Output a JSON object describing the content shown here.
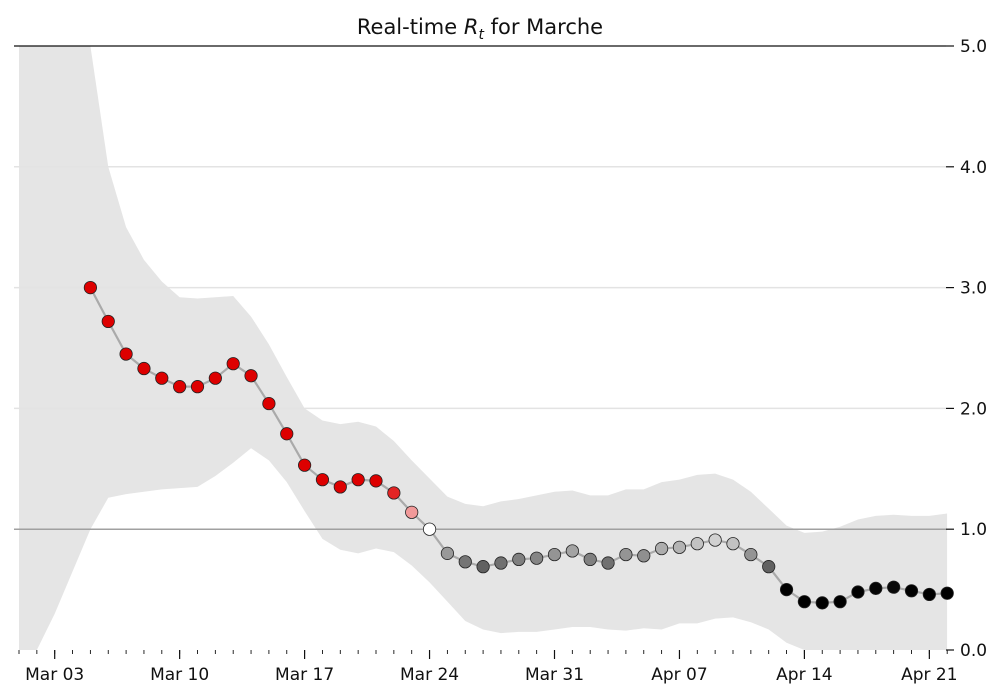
{
  "chart_data": {
    "type": "scatter",
    "title_prefix": "Real-time ",
    "title_symbol": "R",
    "title_subscript": "t",
    "title_suffix": " for Marche",
    "xlabel": "",
    "ylabel": "",
    "ylim": [
      0,
      5
    ],
    "xlim": [
      "2020-03-01",
      "2020-04-22"
    ],
    "grid": "horizontal",
    "reference_line": 1.0,
    "y_ticks": [
      "0.0",
      "1.0",
      "2.0",
      "3.0",
      "4.0",
      "5.0"
    ],
    "x_ticks": [
      {
        "date": "2020-03-03",
        "label": "Mar 03"
      },
      {
        "date": "2020-03-10",
        "label": "Mar 10"
      },
      {
        "date": "2020-03-17",
        "label": "Mar 17"
      },
      {
        "date": "2020-03-24",
        "label": "Mar 24"
      },
      {
        "date": "2020-03-31",
        "label": "Mar 31"
      },
      {
        "date": "2020-04-07",
        "label": "Apr 07"
      },
      {
        "date": "2020-04-14",
        "label": "Apr 14"
      },
      {
        "date": "2020-04-21",
        "label": "Apr 21"
      }
    ],
    "colors": {
      "band": "#e5e5e5",
      "line": "#aaaaaa",
      "above_one": "#dd0000",
      "at_one": "#ffffff",
      "below_one": "#000000"
    },
    "series": [
      {
        "x": [
          "2020-03-05",
          "2020-03-06",
          "2020-03-07",
          "2020-03-08",
          "2020-03-09",
          "2020-03-10",
          "2020-03-11",
          "2020-03-12",
          "2020-03-13",
          "2020-03-14",
          "2020-03-15",
          "2020-03-16",
          "2020-03-17",
          "2020-03-18",
          "2020-03-19",
          "2020-03-20",
          "2020-03-21",
          "2020-03-22",
          "2020-03-23",
          "2020-03-24",
          "2020-03-25",
          "2020-03-26",
          "2020-03-27",
          "2020-03-28",
          "2020-03-29",
          "2020-03-30",
          "2020-03-31",
          "2020-04-01",
          "2020-04-02",
          "2020-04-03",
          "2020-04-04",
          "2020-04-05",
          "2020-04-06",
          "2020-04-07",
          "2020-04-08",
          "2020-04-09",
          "2020-04-10",
          "2020-04-11",
          "2020-04-12",
          "2020-04-13",
          "2020-04-14",
          "2020-04-15",
          "2020-04-16",
          "2020-04-17",
          "2020-04-18",
          "2020-04-19",
          "2020-04-20",
          "2020-04-21",
          "2020-04-22"
        ],
        "y": [
          3.0,
          2.72,
          2.45,
          2.33,
          2.25,
          2.18,
          2.18,
          2.25,
          2.37,
          2.27,
          2.04,
          1.79,
          1.53,
          1.41,
          1.35,
          1.41,
          1.4,
          1.3,
          1.14,
          1.0,
          0.8,
          0.73,
          0.69,
          0.72,
          0.75,
          0.76,
          0.79,
          0.82,
          0.75,
          0.72,
          0.79,
          0.78,
          0.84,
          0.85,
          0.88,
          0.91,
          0.88,
          0.79,
          0.69,
          0.5,
          0.4,
          0.39,
          0.4,
          0.48,
          0.51,
          0.52,
          0.49,
          0.46,
          0.47
        ]
      }
    ],
    "band": {
      "x": [
        "2020-03-01",
        "2020-03-02",
        "2020-03-03",
        "2020-03-04",
        "2020-03-05",
        "2020-03-06",
        "2020-03-07",
        "2020-03-08",
        "2020-03-09",
        "2020-03-10",
        "2020-03-11",
        "2020-03-12",
        "2020-03-13",
        "2020-03-14",
        "2020-03-15",
        "2020-03-16",
        "2020-03-17",
        "2020-03-18",
        "2020-03-19",
        "2020-03-20",
        "2020-03-21",
        "2020-03-22",
        "2020-03-23",
        "2020-03-24",
        "2020-03-25",
        "2020-03-26",
        "2020-03-27",
        "2020-03-28",
        "2020-03-29",
        "2020-03-30",
        "2020-03-31",
        "2020-04-01",
        "2020-04-02",
        "2020-04-03",
        "2020-04-04",
        "2020-04-05",
        "2020-04-06",
        "2020-04-07",
        "2020-04-08",
        "2020-04-09",
        "2020-04-10",
        "2020-04-11",
        "2020-04-12",
        "2020-04-13",
        "2020-04-14",
        "2020-04-15",
        "2020-04-16",
        "2020-04-17",
        "2020-04-18",
        "2020-04-19",
        "2020-04-20",
        "2020-04-21",
        "2020-04-22"
      ],
      "upper": [
        5.0,
        5.0,
        5.0,
        5.0,
        5.0,
        4.0,
        3.5,
        3.23,
        3.05,
        2.92,
        2.91,
        2.92,
        2.93,
        2.76,
        2.53,
        2.26,
        2.0,
        1.9,
        1.87,
        1.89,
        1.85,
        1.73,
        1.57,
        1.42,
        1.27,
        1.21,
        1.19,
        1.23,
        1.25,
        1.28,
        1.31,
        1.32,
        1.28,
        1.28,
        1.33,
        1.33,
        1.39,
        1.41,
        1.45,
        1.46,
        1.41,
        1.31,
        1.17,
        1.03,
        0.97,
        0.98,
        1.02,
        1.08,
        1.11,
        1.12,
        1.11,
        1.11,
        1.13
      ],
      "lower": [
        0.0,
        0.0,
        0.3,
        0.65,
        1.0,
        1.26,
        1.29,
        1.31,
        1.33,
        1.34,
        1.35,
        1.44,
        1.55,
        1.67,
        1.57,
        1.39,
        1.15,
        0.92,
        0.83,
        0.8,
        0.84,
        0.81,
        0.7,
        0.56,
        0.4,
        0.24,
        0.17,
        0.14,
        0.15,
        0.15,
        0.17,
        0.19,
        0.19,
        0.17,
        0.16,
        0.18,
        0.17,
        0.22,
        0.22,
        0.26,
        0.27,
        0.23,
        0.17,
        0.06,
        0.0,
        0.0,
        0.0,
        0.0,
        0.0,
        0.0,
        0.0,
        0.0,
        0.0
      ]
    }
  }
}
